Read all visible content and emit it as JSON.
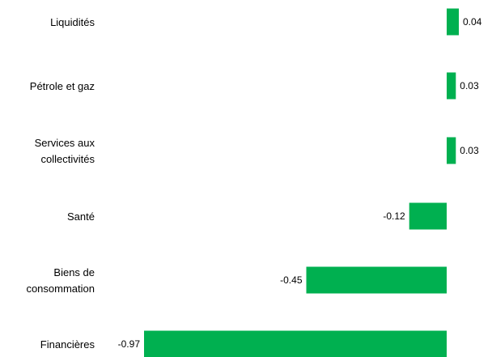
{
  "chart_data": {
    "type": "bar",
    "orientation": "horizontal",
    "categories": [
      "Liquidités",
      "Pétrole et gaz",
      "Services aux collectivités",
      "Santé",
      "Biens de consommation",
      "Financières"
    ],
    "category_lines": [
      [
        "Liquidités"
      ],
      [
        "Pétrole et gaz"
      ],
      [
        "Services aux",
        "collectivités"
      ],
      [
        "Santé"
      ],
      [
        "Biens de",
        "consommation"
      ],
      [
        "Financières"
      ]
    ],
    "values": [
      0.04,
      0.03,
      0.03,
      -0.12,
      -0.45,
      -0.97
    ],
    "value_labels": [
      "0.04",
      "0.03",
      "0.03",
      "-0.12",
      "-0.45",
      "-0.97"
    ],
    "bar_color": "#00b050",
    "title": "",
    "xlabel": "",
    "ylabel": "",
    "xlim": [
      -0.97,
      0.04
    ],
    "grid": false,
    "legend": "none",
    "axes_visible": false
  }
}
